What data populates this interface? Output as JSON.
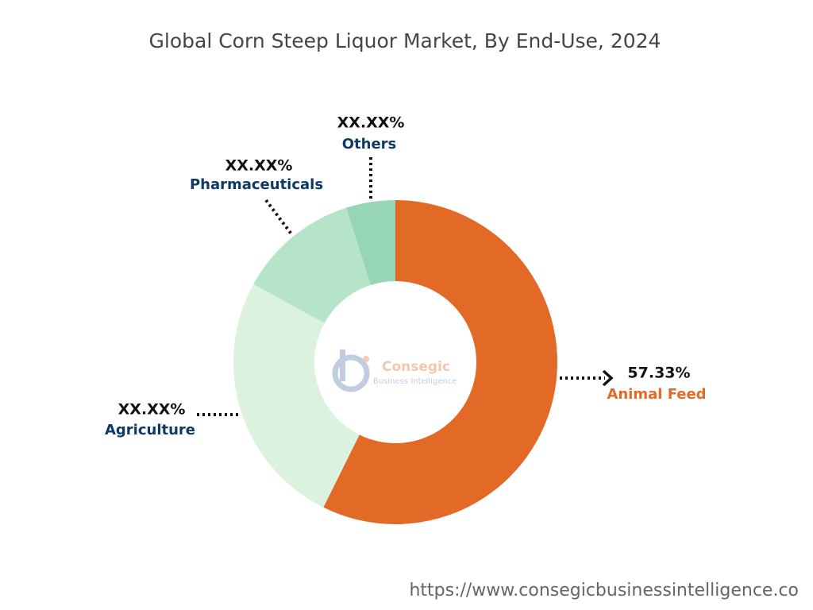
{
  "chart_data": {
    "type": "donut",
    "title": "Global Corn Steep Liquor Market, By End-Use, 2024",
    "categories": [
      "Animal Feed",
      "Agriculture",
      "Pharmaceuticals",
      "Others"
    ],
    "values": [
      57.33,
      25.67,
      12.08,
      4.92
    ],
    "value_labels": [
      "57.33%",
      "XX.XX%",
      "XX.XX%",
      "XX.XX%"
    ],
    "colors": [
      "#e36a26",
      "#daf2de",
      "#b6e4c8",
      "#96d6b4"
    ],
    "logo": {
      "name": "Consegic",
      "tagline": "Business Intelligence"
    },
    "source": "https://www.consegicbusinessintelligence.co"
  }
}
